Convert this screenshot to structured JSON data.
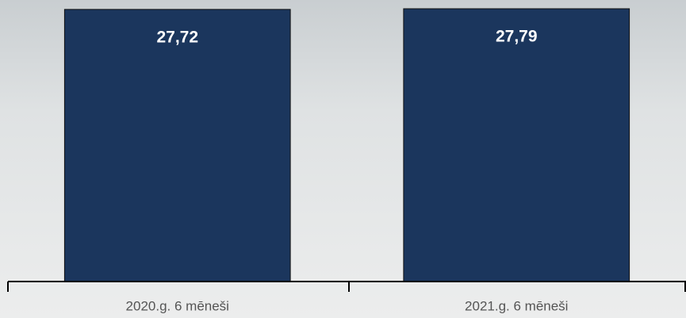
{
  "chart_data": {
    "type": "bar",
    "categories": [
      "2020.g. 6 mēneši",
      "2021.g. 6 mēneši"
    ],
    "values": [
      27.72,
      27.79
    ],
    "value_labels": [
      "27,72",
      "27,79"
    ],
    "color": "#1b365d",
    "ylim": [
      0,
      28
    ]
  }
}
